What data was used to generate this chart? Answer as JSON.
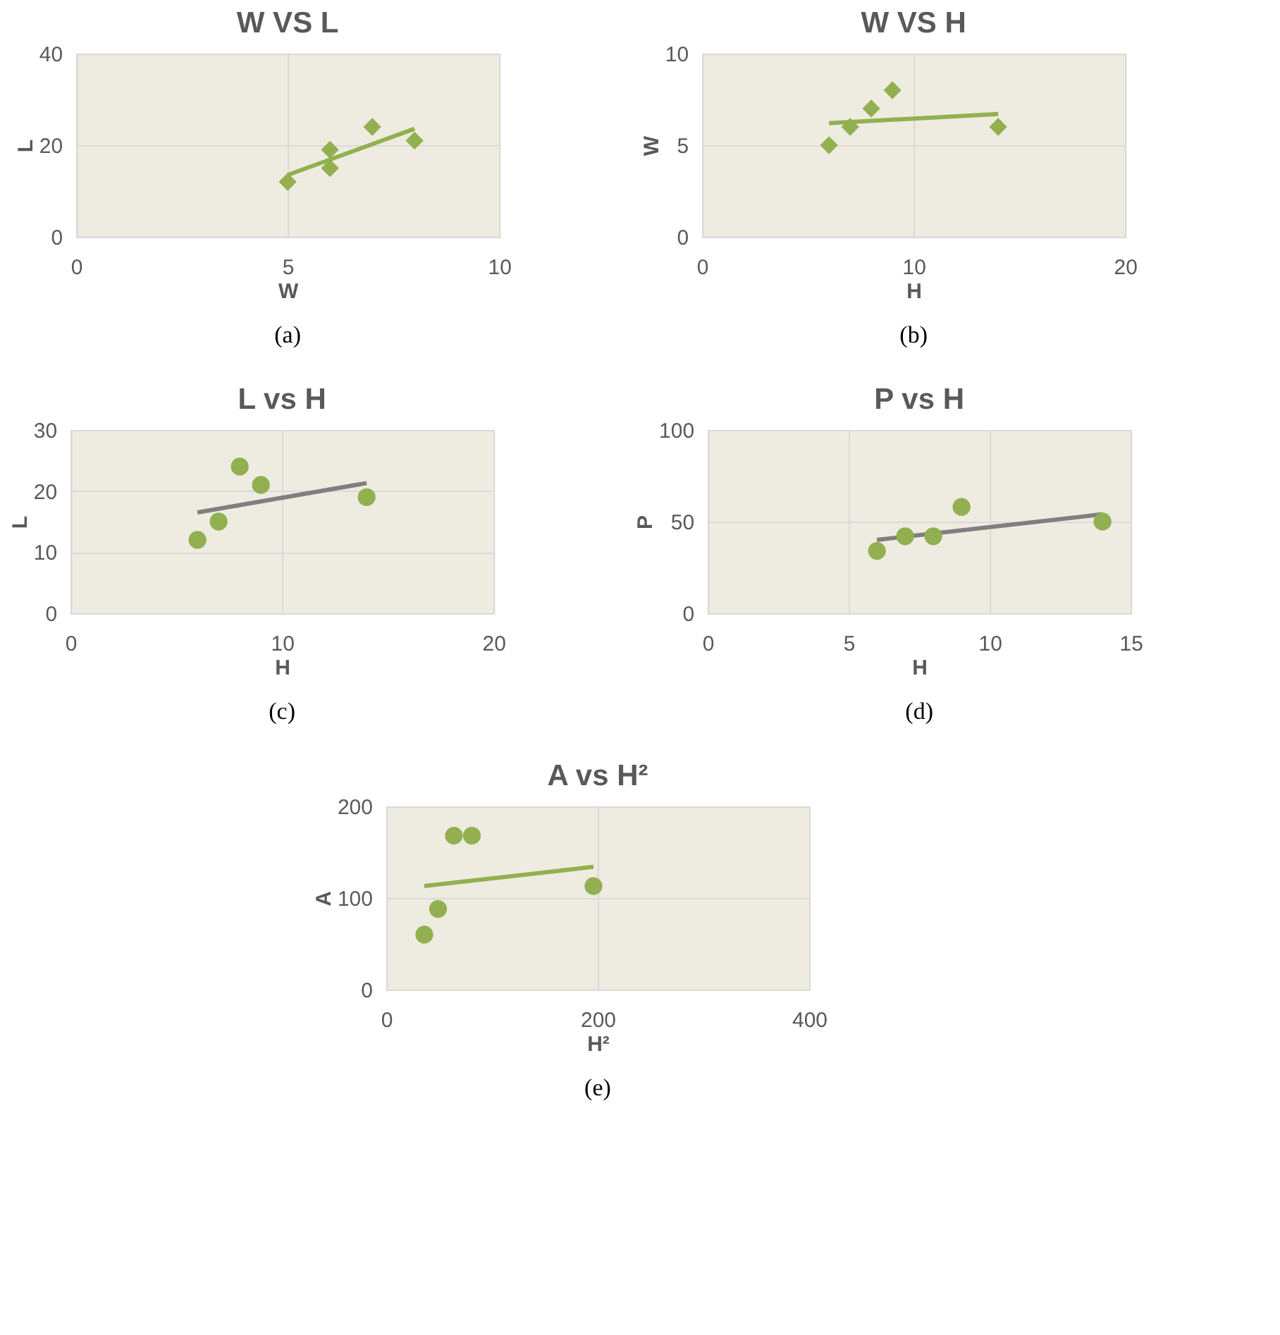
{
  "chart_data": [
    {
      "type": "scatter",
      "title": "W  VS  L",
      "xlabel": "W",
      "ylabel": "L",
      "xlim": [
        0,
        10
      ],
      "xticks": [
        0,
        5,
        10
      ],
      "ylim": [
        0,
        40
      ],
      "yticks": [
        0,
        20,
        40
      ],
      "grid": true,
      "marker": "diamond",
      "annotations": [
        "(a)"
      ],
      "series": [
        {
          "type": "line",
          "marker": "none",
          "color": "#92b050",
          "x": [
            5,
            8
          ],
          "values": [
            13.5,
            23.6
          ]
        },
        {
          "color": "#92b050",
          "x": [
            5,
            6,
            6,
            7,
            8
          ],
          "values": [
            12,
            19,
            15,
            24,
            21
          ]
        }
      ]
    },
    {
      "type": "scatter",
      "title": "W  VS  H",
      "xlabel": "H",
      "ylabel": "W",
      "xlim": [
        0,
        20
      ],
      "xticks": [
        0,
        10,
        20
      ],
      "ylim": [
        0,
        10
      ],
      "yticks": [
        0,
        5,
        10
      ],
      "grid": true,
      "marker": "diamond",
      "annotations": [
        "(b)"
      ],
      "series": [
        {
          "type": "line",
          "marker": "none",
          "color": "#92b050",
          "x": [
            6,
            14
          ],
          "values": [
            6.2,
            6.7
          ]
        },
        {
          "color": "#92b050",
          "x": [
            6,
            7,
            8,
            9,
            14
          ],
          "values": [
            5,
            6,
            7,
            8,
            6
          ]
        }
      ]
    },
    {
      "type": "scatter",
      "title": "L vs H",
      "xlabel": "H",
      "ylabel": "L",
      "xlim": [
        0,
        20
      ],
      "xticks": [
        0,
        10,
        20
      ],
      "ylim": [
        0,
        30
      ],
      "yticks": [
        0,
        10,
        20,
        30
      ],
      "grid": true,
      "marker": "circle",
      "annotations": [
        "(c)"
      ],
      "series": [
        {
          "type": "line",
          "marker": "none",
          "color": "#7f7f7f",
          "x": [
            6,
            14
          ],
          "values": [
            16.5,
            21.3
          ]
        },
        {
          "color": "#92b050",
          "x": [
            6,
            7,
            8,
            9,
            14
          ],
          "values": [
            12,
            15,
            24,
            21,
            19
          ]
        }
      ]
    },
    {
      "type": "scatter",
      "title": "P vs H",
      "xlabel": "H",
      "ylabel": "P",
      "xlim": [
        0,
        15
      ],
      "xticks": [
        0,
        5,
        10,
        15
      ],
      "ylim": [
        0,
        100
      ],
      "yticks": [
        0,
        50,
        100
      ],
      "grid": true,
      "marker": "circle",
      "annotations": [
        "(d)"
      ],
      "series": [
        {
          "type": "line",
          "marker": "none",
          "color": "#7f7f7f",
          "x": [
            6,
            14
          ],
          "values": [
            40,
            54
          ]
        },
        {
          "color": "#92b050",
          "x": [
            6,
            7,
            8,
            9,
            14
          ],
          "values": [
            34,
            42,
            42,
            58,
            50
          ]
        }
      ]
    },
    {
      "type": "scatter",
      "title": "A vs H²",
      "xlabel": "H²",
      "ylabel": "A",
      "xlim": [
        0,
        400
      ],
      "xticks": [
        0,
        200,
        400
      ],
      "ylim": [
        0,
        200
      ],
      "yticks": [
        0,
        100,
        200
      ],
      "grid": true,
      "marker": "circle",
      "annotations": [
        "(e)"
      ],
      "series": [
        {
          "type": "line",
          "marker": "none",
          "color": "#92b050",
          "x": [
            36,
            196
          ],
          "values": [
            113,
            134
          ]
        },
        {
          "color": "#92b050",
          "x": [
            36,
            49,
            64,
            81,
            196
          ],
          "values": [
            60,
            88,
            168,
            168,
            113
          ]
        }
      ]
    }
  ]
}
